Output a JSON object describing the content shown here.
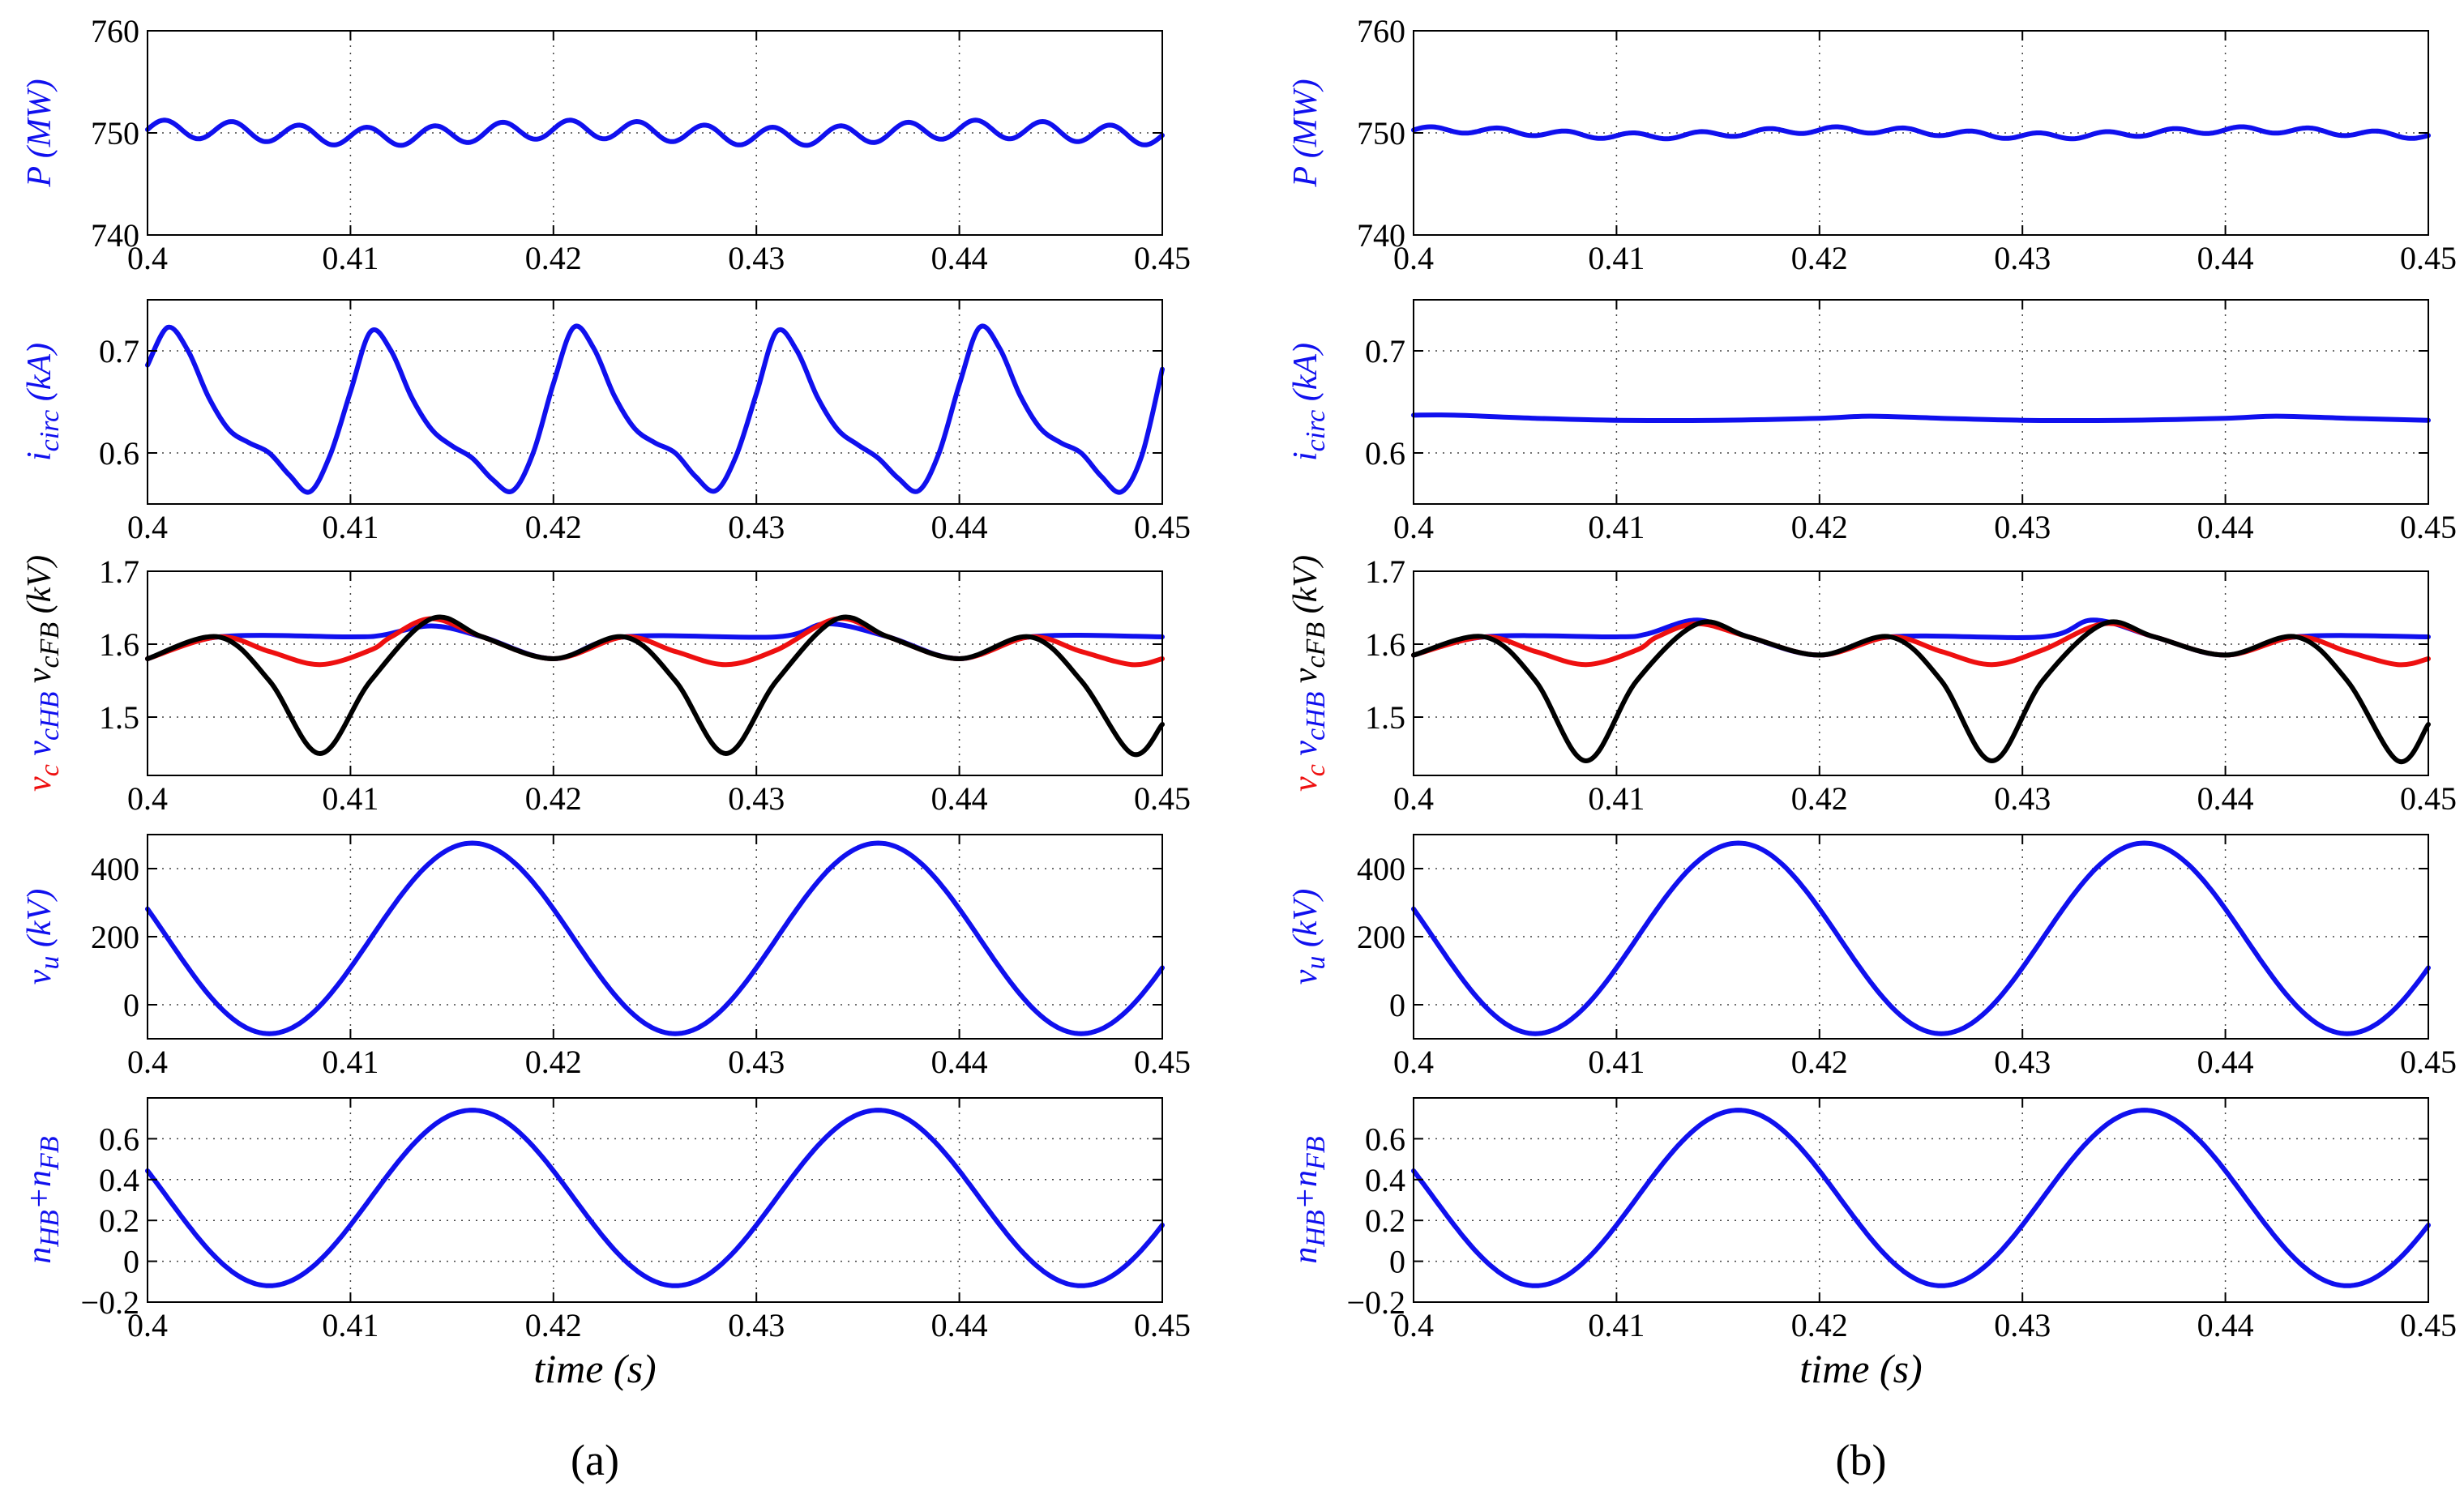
{
  "colors": {
    "blue": "#1010ee",
    "red": "#ee1010",
    "black": "#000000"
  },
  "panel_labels": [
    "(a)",
    "(b)"
  ],
  "chart_data": [
    {
      "type": "line",
      "panel": "a",
      "row": 0,
      "title": "",
      "xlabel": "",
      "ylabel": "P (MW)",
      "xlim": [
        0.4,
        0.45
      ],
      "ylim": [
        740,
        760
      ],
      "xticks": [
        "0.4",
        "0.41",
        "0.42",
        "0.43",
        "0.44",
        "0.45"
      ],
      "yticks": [
        "740",
        "750",
        "760"
      ],
      "grid": true,
      "series": [
        {
          "name": "P",
          "color": "blue",
          "x": [
            0.4,
            0.45
          ],
          "baseline": 750,
          "amplitude": 0.9,
          "ripple_period": 0.00333,
          "envelope_amplitude": 0.35,
          "envelope_period": 0.02
        }
      ]
    },
    {
      "type": "line",
      "panel": "a",
      "row": 1,
      "title": "",
      "xlabel": "",
      "ylabel": "i_circ (kA)",
      "ylabel_parts": [
        {
          "t": "i",
          "c": "blue"
        },
        {
          "t": "circ",
          "c": "blue",
          "sub": true
        },
        {
          "t": " (kA)",
          "c": "blue"
        }
      ],
      "xlim": [
        0.4,
        0.45
      ],
      "ylim": [
        0.55,
        0.75
      ],
      "xticks": [
        "0.4",
        "0.41",
        "0.42",
        "0.43",
        "0.44",
        "0.45"
      ],
      "yticks": [
        "0.6",
        "0.7"
      ],
      "grid": true,
      "series": [
        {
          "name": "i_circ",
          "color": "blue",
          "x": [
            0.4,
            0.401,
            0.402,
            0.403,
            0.404,
            0.405,
            0.406,
            0.407,
            0.408,
            0.409,
            0.41,
            0.411,
            0.412,
            0.413,
            0.414,
            0.415,
            0.416,
            0.417,
            0.418,
            0.419,
            0.42,
            0.421,
            0.422,
            0.423,
            0.424,
            0.425,
            0.426,
            0.427,
            0.428,
            0.429,
            0.43,
            0.431,
            0.432,
            0.433,
            0.434,
            0.435,
            0.436,
            0.437,
            0.438,
            0.439,
            0.44,
            0.441,
            0.442,
            0.443,
            0.444,
            0.445,
            0.446,
            0.447,
            0.448,
            0.449,
            0.45
          ],
          "y": [
            0.686,
            0.723,
            0.7,
            0.655,
            0.623,
            0.61,
            0.6,
            0.578,
            0.562,
            0.598,
            0.66,
            0.719,
            0.7,
            0.655,
            0.623,
            0.607,
            0.595,
            0.574,
            0.563,
            0.6,
            0.668,
            0.723,
            0.702,
            0.656,
            0.624,
            0.61,
            0.6,
            0.577,
            0.563,
            0.597,
            0.658,
            0.719,
            0.7,
            0.655,
            0.623,
            0.608,
            0.595,
            0.575,
            0.563,
            0.6,
            0.667,
            0.723,
            0.702,
            0.656,
            0.624,
            0.61,
            0.6,
            0.577,
            0.562,
            0.598,
            0.682
          ]
        }
      ]
    },
    {
      "type": "line",
      "panel": "a",
      "row": 2,
      "title": "",
      "xlabel": "",
      "ylabel": "v_c v_cHB v_cFB (kV)",
      "ylabel_parts": [
        {
          "t": "v",
          "c": "red"
        },
        {
          "t": "c",
          "c": "red",
          "sub": true
        },
        {
          "t": "  v",
          "c": "blue"
        },
        {
          "t": "cHB",
          "c": "blue",
          "sub": true
        },
        {
          "t": "  v",
          "c": "black"
        },
        {
          "t": "cFB",
          "c": "black",
          "sub": true
        },
        {
          "t": " (kV)",
          "c": "black"
        }
      ],
      "xlim": [
        0.4,
        0.45
      ],
      "ylim": [
        1.42,
        1.7
      ],
      "xticks": [
        "0.4",
        "0.41",
        "0.42",
        "0.43",
        "0.44",
        "0.45"
      ],
      "yticks": [
        "1.5",
        "1.6",
        "1.7"
      ],
      "grid": true,
      "series": [
        {
          "name": "v_cHB",
          "color": "blue",
          "x": [
            0.4,
            0.4035,
            0.41,
            0.4115,
            0.414,
            0.4165,
            0.42,
            0.4235,
            0.431,
            0.4335,
            0.4365,
            0.44,
            0.4435,
            0.45
          ],
          "y": [
            1.58,
            1.61,
            1.61,
            1.612,
            1.625,
            1.61,
            1.58,
            1.61,
            1.61,
            1.628,
            1.61,
            1.58,
            1.61,
            1.61
          ]
        },
        {
          "name": "v_c",
          "color": "red",
          "x": [
            0.4,
            0.4035,
            0.406,
            0.4085,
            0.411,
            0.412,
            0.414,
            0.4165,
            0.42,
            0.4235,
            0.426,
            0.4285,
            0.431,
            0.434,
            0.4365,
            0.44,
            0.4435,
            0.446,
            0.4485,
            0.45
          ],
          "y": [
            1.58,
            1.61,
            1.59,
            1.572,
            1.592,
            1.61,
            1.635,
            1.61,
            1.58,
            1.61,
            1.59,
            1.572,
            1.592,
            1.635,
            1.61,
            1.58,
            1.61,
            1.59,
            1.572,
            1.58
          ]
        },
        {
          "name": "v_cFB",
          "color": "black",
          "x": [
            0.4,
            0.4035,
            0.406,
            0.4085,
            0.411,
            0.414,
            0.4165,
            0.42,
            0.4235,
            0.426,
            0.4285,
            0.431,
            0.434,
            0.4365,
            0.44,
            0.4435,
            0.446,
            0.4485,
            0.45
          ],
          "y": [
            1.58,
            1.61,
            1.55,
            1.45,
            1.55,
            1.635,
            1.61,
            1.58,
            1.61,
            1.55,
            1.45,
            1.55,
            1.635,
            1.61,
            1.58,
            1.61,
            1.55,
            1.45,
            1.49
          ]
        }
      ]
    },
    {
      "type": "line",
      "panel": "a",
      "row": 3,
      "title": "",
      "xlabel": "",
      "ylabel": "v_u (kV)",
      "ylabel_parts": [
        {
          "t": "v",
          "c": "blue"
        },
        {
          "t": "u",
          "c": "blue",
          "sub": true
        },
        {
          "t": " (kV)",
          "c": "blue"
        }
      ],
      "xlim": [
        0.4,
        0.45
      ],
      "ylim": [
        -100,
        500
      ],
      "xticks": [
        "0.4",
        "0.41",
        "0.42",
        "0.43",
        "0.44",
        "0.45"
      ],
      "yticks": [
        "0",
        "200",
        "400"
      ],
      "grid": true,
      "series": [
        {
          "name": "v_u",
          "color": "blue",
          "x": [
            0.4,
            0.45
          ],
          "offset": 195,
          "amplitude": 280,
          "period": 0.02,
          "peak_at": 0.416
        }
      ]
    },
    {
      "type": "line",
      "panel": "a",
      "row": 4,
      "title": "",
      "xlabel": "time (s)",
      "ylabel": "n_HB+n_FB",
      "ylabel_parts": [
        {
          "t": "n",
          "c": "blue"
        },
        {
          "t": "HB",
          "c": "blue",
          "sub": true
        },
        {
          "t": "+n",
          "c": "blue"
        },
        {
          "t": "FB",
          "c": "blue",
          "sub": true
        }
      ],
      "xlim": [
        0.4,
        0.45
      ],
      "ylim": [
        -0.2,
        0.8
      ],
      "xticks": [
        "0.4",
        "0.41",
        "0.42",
        "0.43",
        "0.44",
        "0.45"
      ],
      "yticks": [
        "−0.2",
        "0",
        "0.2",
        "0.4",
        "0.6"
      ],
      "grid": true,
      "series": [
        {
          "name": "n_HB+n_FB",
          "color": "blue",
          "x": [
            0.4,
            0.45
          ],
          "offset": 0.31,
          "amplitude": 0.43,
          "period": 0.02,
          "peak_at": 0.416
        }
      ]
    },
    {
      "type": "line",
      "panel": "b",
      "row": 0,
      "title": "",
      "xlabel": "",
      "ylabel": "P (MW)",
      "xlim": [
        0.4,
        0.45
      ],
      "ylim": [
        740,
        760
      ],
      "xticks": [
        "0.4",
        "0.41",
        "0.42",
        "0.43",
        "0.44",
        "0.45"
      ],
      "yticks": [
        "740",
        "750",
        "760"
      ],
      "grid": true,
      "series": [
        {
          "name": "P",
          "color": "blue",
          "x": [
            0.4,
            0.45
          ],
          "baseline": 750,
          "amplitude": 0.3,
          "ripple_period": 0.00333,
          "envelope_amplitude": 0.3,
          "envelope_period": 0.02
        }
      ]
    },
    {
      "type": "line",
      "panel": "b",
      "row": 1,
      "title": "",
      "xlabel": "",
      "ylabel": "i_circ (kA)",
      "ylabel_parts": [
        {
          "t": "i",
          "c": "blue"
        },
        {
          "t": "circ",
          "c": "blue",
          "sub": true
        },
        {
          "t": " (kA)",
          "c": "blue"
        }
      ],
      "xlim": [
        0.4,
        0.45
      ],
      "ylim": [
        0.55,
        0.75
      ],
      "xticks": [
        "0.4",
        "0.41",
        "0.42",
        "0.43",
        "0.44",
        "0.45"
      ],
      "yticks": [
        "0.6",
        "0.7"
      ],
      "grid": true,
      "series": [
        {
          "name": "i_circ",
          "color": "blue",
          "x": [
            0.4,
            0.402,
            0.406,
            0.41,
            0.415,
            0.42,
            0.4225,
            0.426,
            0.43,
            0.435,
            0.44,
            0.4425,
            0.446,
            0.45
          ],
          "y": [
            0.637,
            0.637,
            0.634,
            0.632,
            0.632,
            0.634,
            0.636,
            0.634,
            0.632,
            0.632,
            0.634,
            0.636,
            0.634,
            0.632
          ]
        }
      ]
    },
    {
      "type": "line",
      "panel": "b",
      "row": 2,
      "title": "",
      "xlabel": "",
      "ylabel": "v_c v_cHB v_cFB (kV)",
      "ylabel_parts": [
        {
          "t": "v",
          "c": "red"
        },
        {
          "t": "c",
          "c": "red",
          "sub": true
        },
        {
          "t": "  v",
          "c": "blue"
        },
        {
          "t": "cHB",
          "c": "blue",
          "sub": true
        },
        {
          "t": "  v",
          "c": "black"
        },
        {
          "t": "cFB",
          "c": "black",
          "sub": true
        },
        {
          "t": " (kV)",
          "c": "black"
        }
      ],
      "xlim": [
        0.4,
        0.45
      ],
      "ylim": [
        1.42,
        1.7
      ],
      "xticks": [
        "0.4",
        "0.41",
        "0.42",
        "0.43",
        "0.44",
        "0.45"
      ],
      "yticks": [
        "1.5",
        "1.6",
        "1.7"
      ],
      "grid": true,
      "series": [
        {
          "name": "v_cHB",
          "color": "blue",
          "x": [
            0.4,
            0.4035,
            0.41,
            0.4115,
            0.414,
            0.4165,
            0.42,
            0.4235,
            0.431,
            0.4335,
            0.4365,
            0.44,
            0.4435,
            0.45
          ],
          "y": [
            1.585,
            1.61,
            1.61,
            1.614,
            1.633,
            1.61,
            1.585,
            1.61,
            1.61,
            1.633,
            1.61,
            1.585,
            1.61,
            1.61
          ]
        },
        {
          "name": "v_c",
          "color": "red",
          "x": [
            0.4,
            0.4035,
            0.406,
            0.4085,
            0.411,
            0.412,
            0.414,
            0.4165,
            0.42,
            0.4235,
            0.426,
            0.4285,
            0.431,
            0.434,
            0.4365,
            0.44,
            0.4435,
            0.446,
            0.4485,
            0.45
          ],
          "y": [
            1.585,
            1.61,
            1.59,
            1.572,
            1.592,
            1.61,
            1.628,
            1.61,
            1.585,
            1.61,
            1.59,
            1.572,
            1.592,
            1.628,
            1.61,
            1.585,
            1.61,
            1.59,
            1.572,
            1.58
          ]
        },
        {
          "name": "v_cFB",
          "color": "black",
          "x": [
            0.4,
            0.4035,
            0.406,
            0.4085,
            0.411,
            0.414,
            0.4165,
            0.42,
            0.4235,
            0.426,
            0.4285,
            0.431,
            0.434,
            0.4365,
            0.44,
            0.4435,
            0.446,
            0.4485,
            0.45
          ],
          "y": [
            1.585,
            1.61,
            1.55,
            1.44,
            1.55,
            1.628,
            1.61,
            1.585,
            1.61,
            1.55,
            1.44,
            1.55,
            1.628,
            1.61,
            1.585,
            1.61,
            1.55,
            1.44,
            1.49
          ]
        }
      ]
    },
    {
      "type": "line",
      "panel": "b",
      "row": 3,
      "title": "",
      "xlabel": "",
      "ylabel": "v_u (kV)",
      "ylabel_parts": [
        {
          "t": "v",
          "c": "blue"
        },
        {
          "t": "u",
          "c": "blue",
          "sub": true
        },
        {
          "t": " (kV)",
          "c": "blue"
        }
      ],
      "xlim": [
        0.4,
        0.45
      ],
      "ylim": [
        -100,
        500
      ],
      "xticks": [
        "0.4",
        "0.41",
        "0.42",
        "0.43",
        "0.44",
        "0.45"
      ],
      "yticks": [
        "0",
        "200",
        "400"
      ],
      "grid": true,
      "series": [
        {
          "name": "v_u",
          "color": "blue",
          "x": [
            0.4,
            0.45
          ],
          "offset": 195,
          "amplitude": 280,
          "period": 0.02,
          "peak_at": 0.416
        }
      ]
    },
    {
      "type": "line",
      "panel": "b",
      "row": 4,
      "title": "",
      "xlabel": "time (s)",
      "ylabel": "n_HB+n_FB",
      "ylabel_parts": [
        {
          "t": "n",
          "c": "blue"
        },
        {
          "t": "HB",
          "c": "blue",
          "sub": true
        },
        {
          "t": "+n",
          "c": "blue"
        },
        {
          "t": "FB",
          "c": "blue",
          "sub": true
        }
      ],
      "xlim": [
        0.4,
        0.45
      ],
      "ylim": [
        -0.2,
        0.8
      ],
      "xticks": [
        "0.4",
        "0.41",
        "0.42",
        "0.43",
        "0.44",
        "0.45"
      ],
      "yticks": [
        "−0.2",
        "0",
        "0.2",
        "0.4",
        "0.6"
      ],
      "grid": true,
      "series": [
        {
          "name": "n_HB+n_FB",
          "color": "blue",
          "x": [
            0.4,
            0.45
          ],
          "offset": 0.31,
          "amplitude": 0.43,
          "period": 0.02,
          "peak_at": 0.416
        }
      ]
    }
  ]
}
